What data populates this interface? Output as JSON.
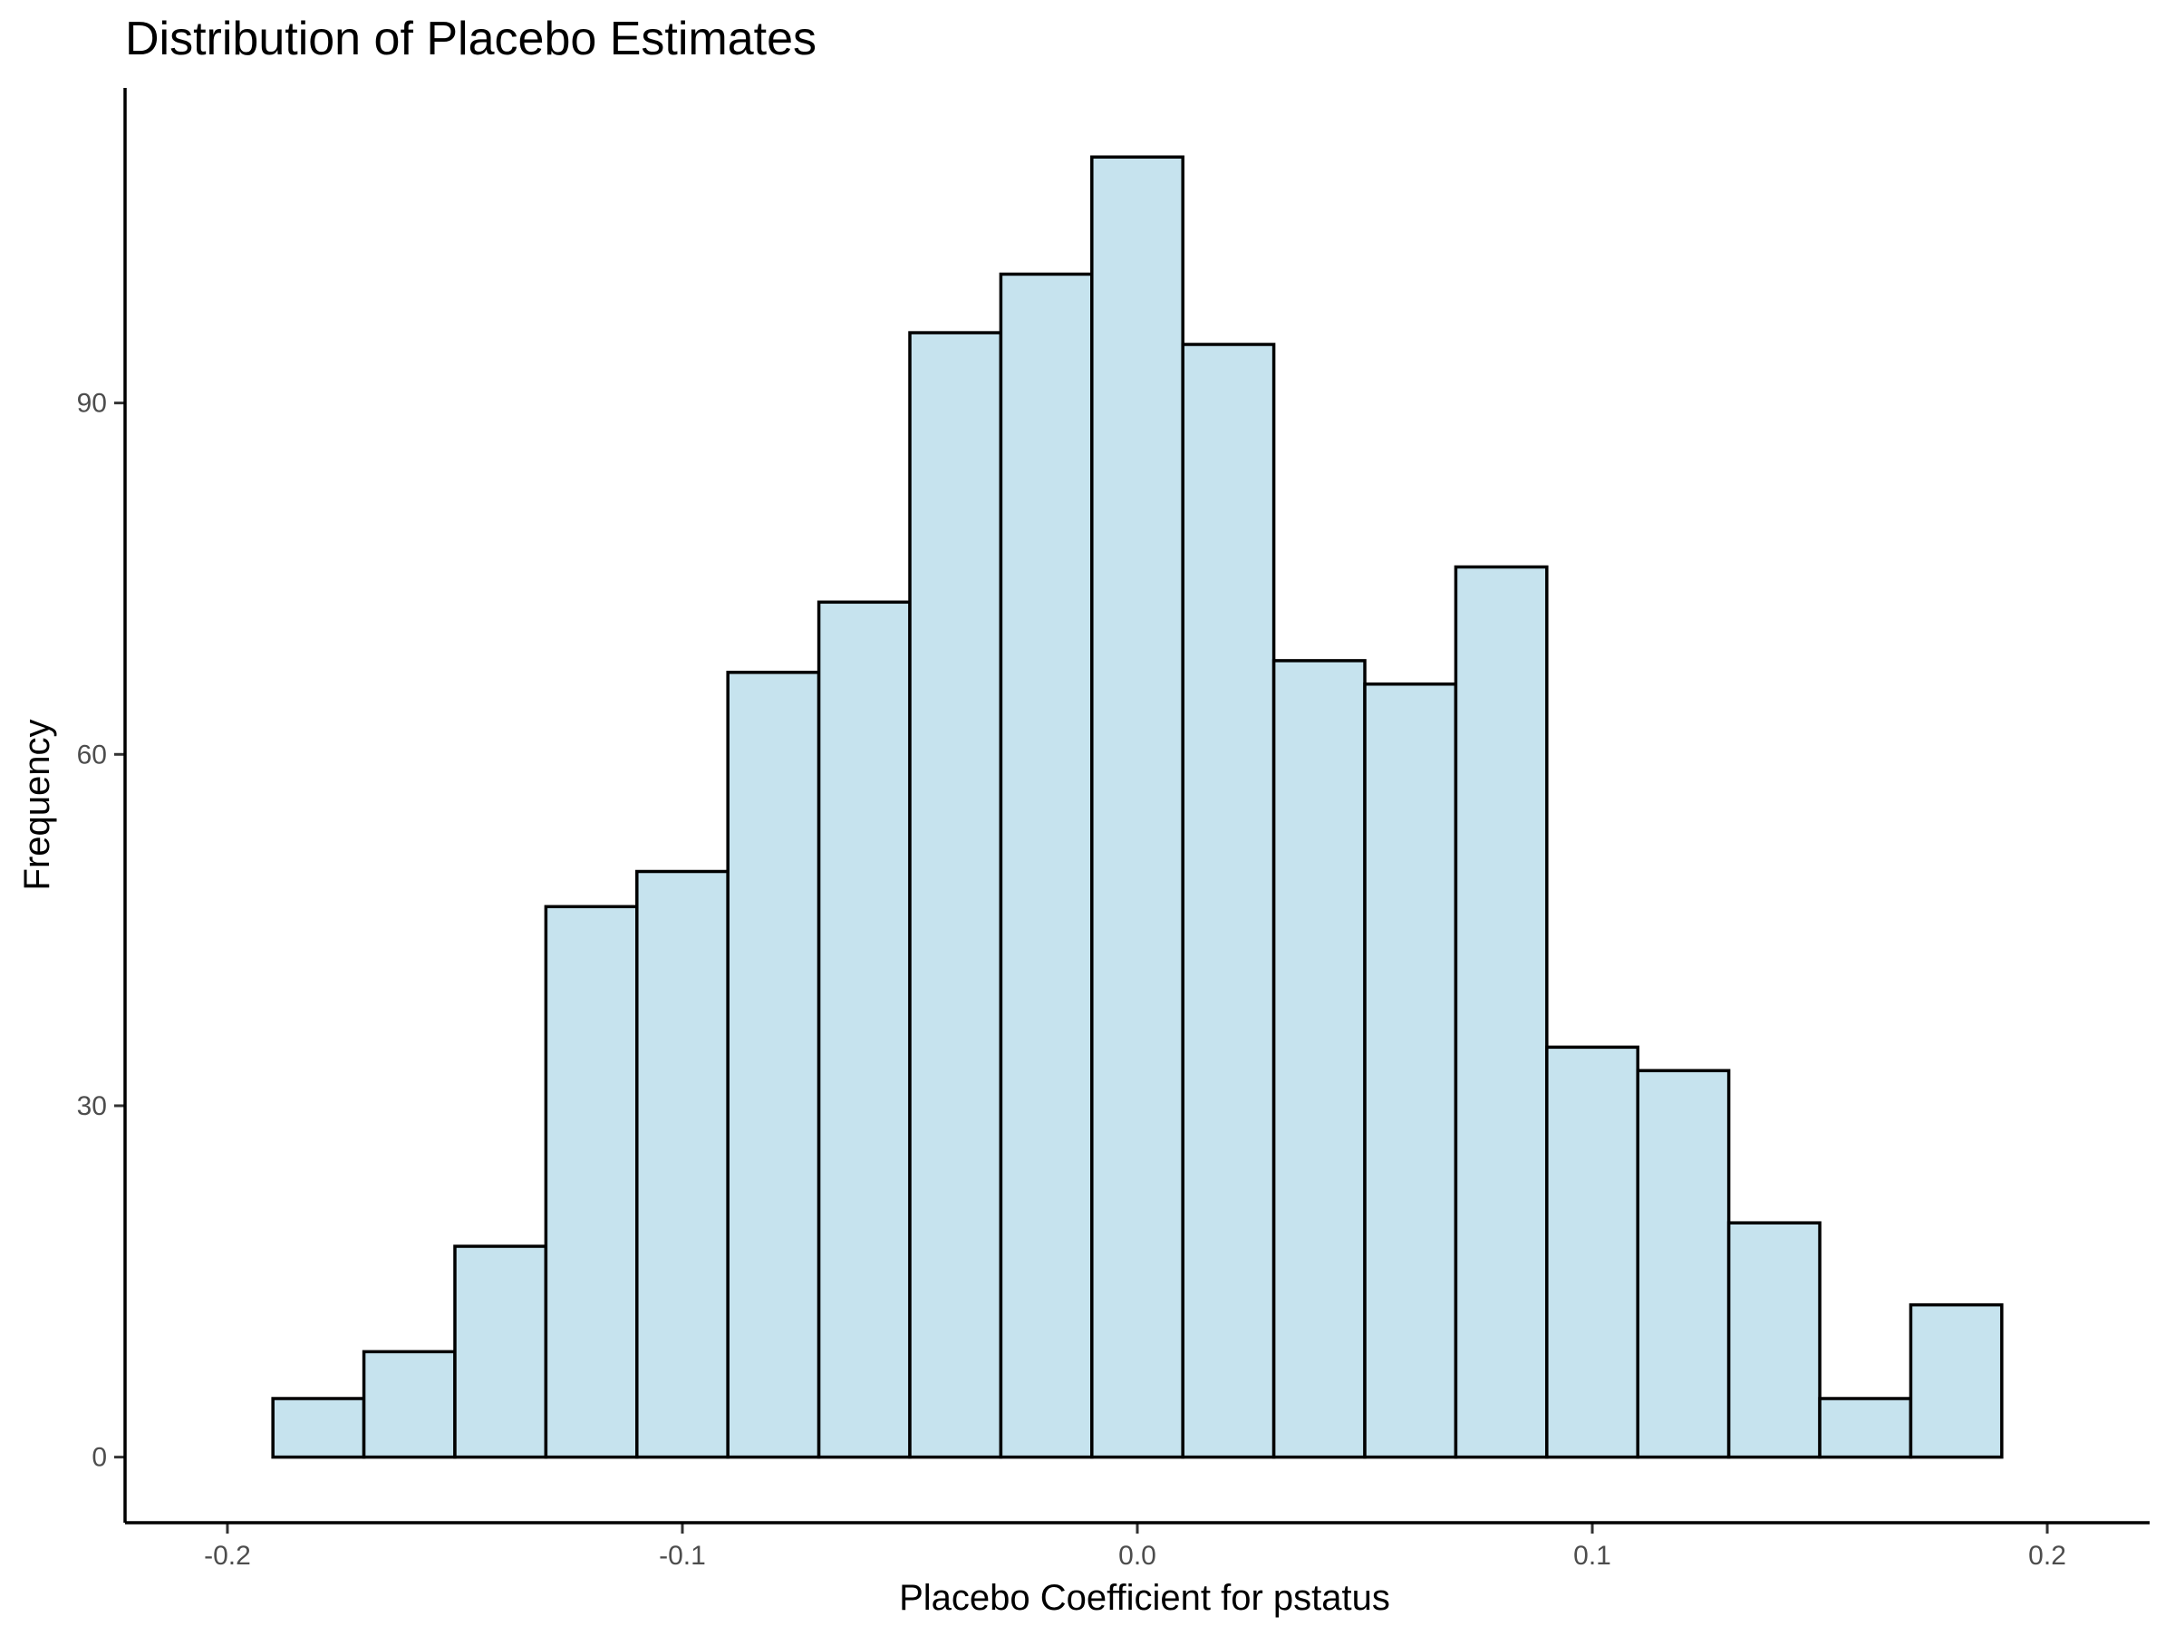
{
  "chart_data": {
    "type": "bar",
    "title": "Distribution of Placebo Estimates",
    "xlabel": "Placebo Coefficient for pstatus",
    "ylabel": "Frequency",
    "xlim": [
      -0.2225,
      0.2225
    ],
    "ylim": [
      -5.6,
      116.9
    ],
    "xticks": [
      -0.2,
      -0.1,
      0.0,
      0.1,
      0.2
    ],
    "xtick_labels": [
      "-0.2",
      "-0.1",
      "0.0",
      "0.1",
      "0.2"
    ],
    "yticks": [
      0,
      30,
      60,
      90
    ],
    "ytick_labels": [
      "0",
      "30",
      "60",
      "90"
    ],
    "bin_width": 0.02,
    "bins": [
      {
        "x0": -0.19,
        "x1": -0.17,
        "count": 5
      },
      {
        "x0": -0.17,
        "x1": -0.15,
        "count": 9
      },
      {
        "x0": -0.15,
        "x1": -0.13,
        "count": 18
      },
      {
        "x0": -0.13,
        "x1": -0.11,
        "count": 47
      },
      {
        "x0": -0.11,
        "x1": -0.09,
        "count": 50
      },
      {
        "x0": -0.09,
        "x1": -0.07,
        "count": 67
      },
      {
        "x0": -0.07,
        "x1": -0.05,
        "count": 73
      },
      {
        "x0": -0.05,
        "x1": -0.03,
        "count": 96
      },
      {
        "x0": -0.03,
        "x1": -0.01,
        "count": 101
      },
      {
        "x0": -0.01,
        "x1": 0.01,
        "count": 111
      },
      {
        "x0": 0.01,
        "x1": 0.03,
        "count": 95
      },
      {
        "x0": 0.03,
        "x1": 0.05,
        "count": 68
      },
      {
        "x0": 0.05,
        "x1": 0.07,
        "count": 66
      },
      {
        "x0": 0.07,
        "x1": 0.09,
        "count": 76
      },
      {
        "x0": 0.09,
        "x1": 0.11,
        "count": 35
      },
      {
        "x0": 0.11,
        "x1": 0.13,
        "count": 33
      },
      {
        "x0": 0.13,
        "x1": 0.15,
        "count": 20
      },
      {
        "x0": 0.15,
        "x1": 0.17,
        "count": 5
      },
      {
        "x0": 0.17,
        "x1": 0.19,
        "count": 13
      }
    ],
    "grid": false,
    "legend": "none",
    "colors": {
      "bar_fill": "#c6e3ee",
      "bar_stroke": "#000000",
      "axis": "#000000",
      "tick_text": "#4d4d4d",
      "text": "#000000",
      "background": "#ffffff"
    }
  }
}
